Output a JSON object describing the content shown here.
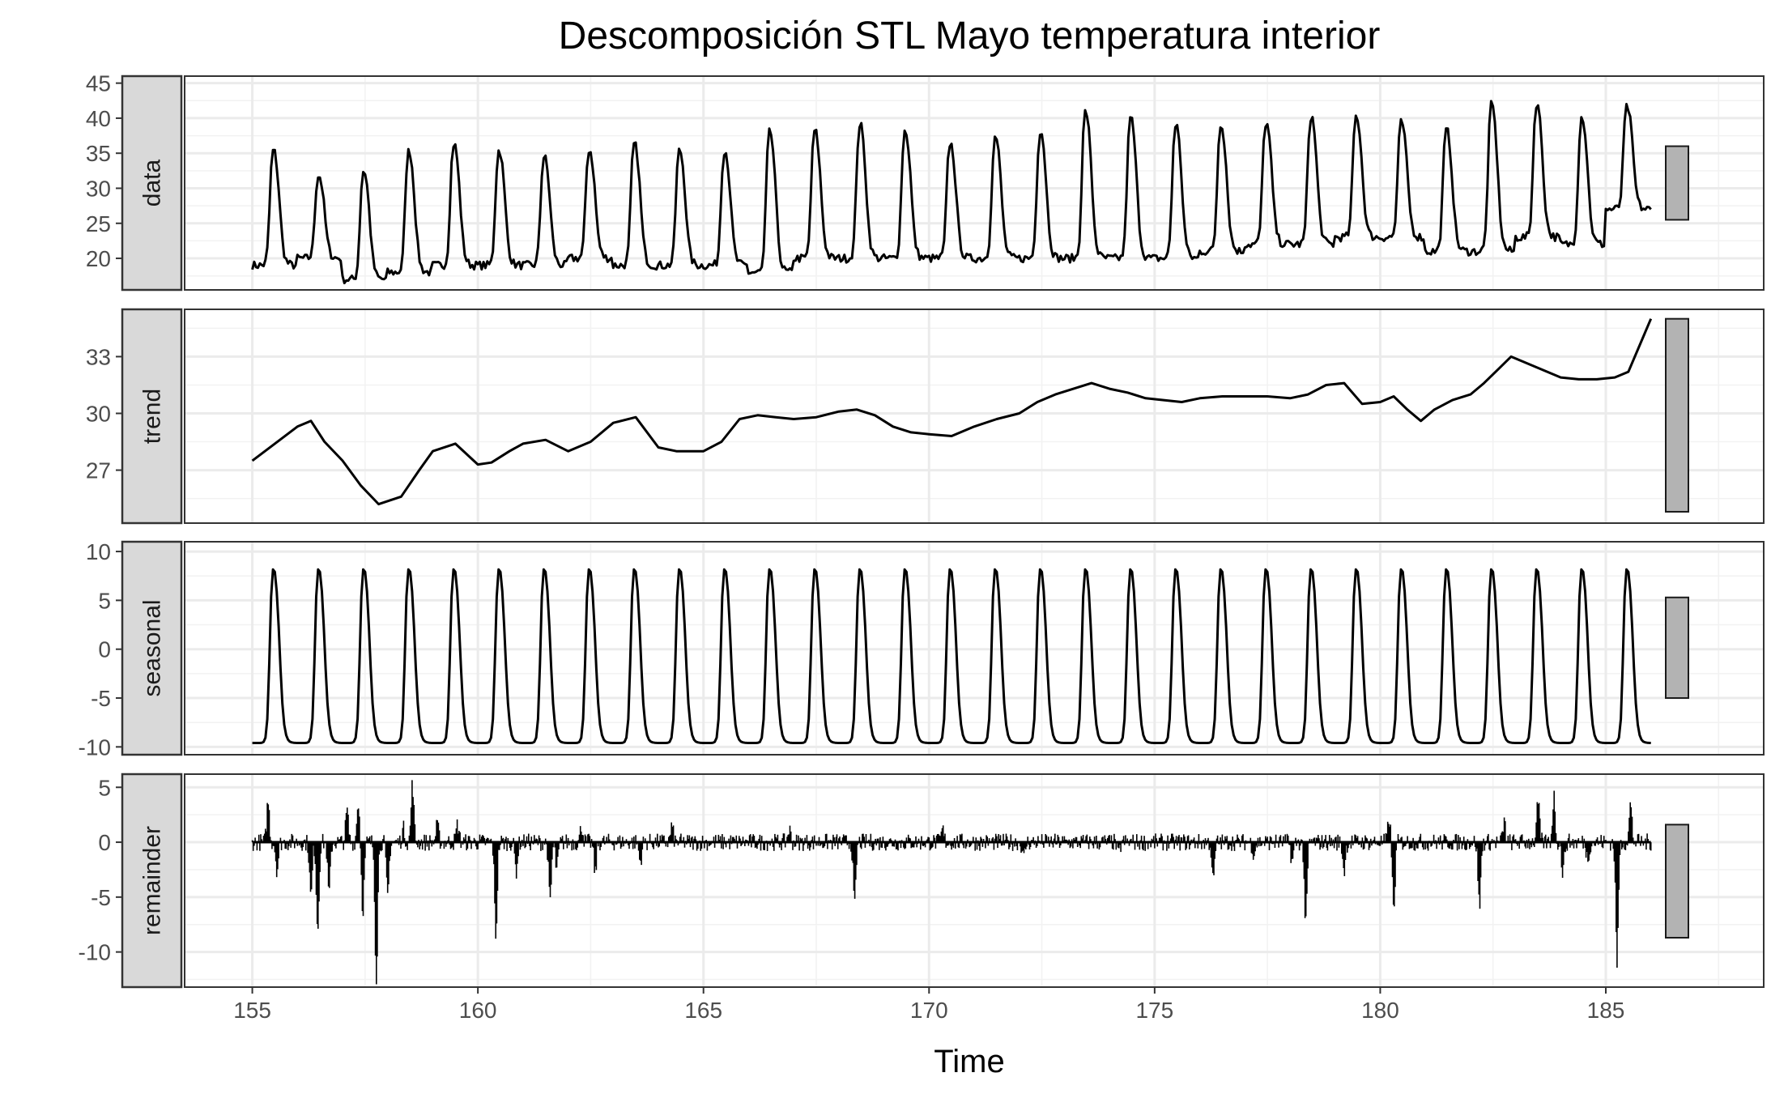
{
  "chart_data": {
    "type": "line",
    "title": "Descomposición STL Mayo temperatura interior",
    "xlabel": "Time",
    "xlim": [
      153.5,
      188.5
    ],
    "x_ticks": [
      "155",
      "160",
      "165",
      "170",
      "175",
      "180",
      "185"
    ],
    "x_tick_values": [
      155,
      160,
      165,
      170,
      175,
      180,
      185
    ],
    "x_start": 155,
    "x_end": 186,
    "samples_per_day": 24,
    "grid": true,
    "colors": {
      "line": "#000000",
      "panel_border": "#333333",
      "grid_major": "#ebebeb",
      "strip_fill": "#d9d9d9",
      "range_bar": "#b3b3b3"
    },
    "panels": [
      {
        "name": "data",
        "label": "data",
        "ylim": [
          15.5,
          46
        ],
        "y_ticks": [
          "20",
          "25",
          "30",
          "35",
          "40",
          "45"
        ],
        "y_tick_values": [
          20,
          25,
          30,
          35,
          40,
          45
        ],
        "range_bar": [
          25.5,
          36
        ],
        "daily_peaks": [
          37,
          33,
          34,
          37,
          38,
          37,
          36,
          37,
          38,
          37,
          37,
          40,
          40,
          41,
          40,
          38,
          39,
          40,
          43,
          42,
          41,
          41,
          41,
          42,
          42,
          41,
          40,
          44,
          44,
          42,
          43
        ],
        "daily_lows": [
          19,
          20,
          17,
          18,
          19,
          19,
          19,
          20,
          19,
          19,
          19,
          18,
          20,
          20,
          20,
          20,
          20,
          20,
          20,
          20,
          20,
          21,
          22,
          22,
          23,
          23,
          21,
          21,
          23,
          22,
          27
        ]
      },
      {
        "name": "trend",
        "label": "trend",
        "ylim": [
          24.2,
          35.5
        ],
        "y_ticks": [
          "27",
          "30",
          "33"
        ],
        "y_tick_values": [
          27,
          30,
          33
        ],
        "range_bar": [
          24.8,
          35.0
        ],
        "x": [
          155,
          155.5,
          156,
          156.3,
          156.6,
          157,
          157.4,
          157.8,
          158.3,
          158.7,
          159,
          159.5,
          160,
          160.3,
          160.7,
          161,
          161.5,
          162,
          162.5,
          163,
          163.5,
          164,
          164.4,
          165,
          165.4,
          165.8,
          166.2,
          166.6,
          167,
          167.5,
          168,
          168.4,
          168.8,
          169.2,
          169.6,
          170,
          170.5,
          171,
          171.5,
          172,
          172.4,
          172.8,
          173.2,
          173.6,
          174,
          174.4,
          174.8,
          175.2,
          175.6,
          176,
          176.5,
          177,
          177.5,
          178,
          178.4,
          178.8,
          179.2,
          179.6,
          180,
          180.3,
          180.6,
          180.9,
          181.2,
          181.6,
          182,
          182.3,
          182.6,
          182.9,
          183.2,
          183.6,
          184,
          184.4,
          184.8,
          185.2,
          185.5,
          186
        ],
        "y": [
          27.5,
          28.4,
          29.3,
          29.6,
          28.5,
          27.5,
          26.2,
          25.2,
          25.6,
          27.0,
          28.0,
          28.4,
          27.3,
          27.4,
          28.0,
          28.4,
          28.6,
          28.0,
          28.5,
          29.5,
          29.8,
          28.2,
          28.0,
          28.0,
          28.5,
          29.7,
          29.9,
          29.8,
          29.7,
          29.8,
          30.1,
          30.2,
          29.9,
          29.3,
          29.0,
          28.9,
          28.8,
          29.3,
          29.7,
          30.0,
          30.6,
          31.0,
          31.3,
          31.6,
          31.3,
          31.1,
          30.8,
          30.7,
          30.6,
          30.8,
          30.9,
          30.9,
          30.9,
          30.8,
          31.0,
          31.5,
          31.6,
          30.5,
          30.6,
          30.9,
          30.2,
          29.6,
          30.2,
          30.7,
          31.0,
          31.6,
          32.3,
          33.0,
          32.7,
          32.3,
          31.9,
          31.8,
          31.8,
          31.9,
          32.2,
          35.0
        ]
      },
      {
        "name": "seasonal",
        "label": "seasonal",
        "ylim": [
          -10.8,
          11.0
        ],
        "y_ticks": [
          "-10",
          "-5",
          "0",
          "5",
          "10"
        ],
        "y_tick_values": [
          -10,
          -5,
          0,
          5,
          10
        ],
        "range_bar": [
          -5,
          5.3
        ],
        "amplitude_max": 10,
        "amplitude_min": -9.6
      },
      {
        "name": "remainder",
        "label": "remainder",
        "ylim": [
          -13.2,
          6.2
        ],
        "y_ticks": [
          "-10",
          "-5",
          "0",
          "5"
        ],
        "y_tick_values": [
          -10,
          -5,
          0,
          5
        ],
        "range_bar": [
          -8.7,
          1.6
        ],
        "spikes": [
          {
            "x": 155.35,
            "y": 3.7
          },
          {
            "x": 155.55,
            "y": -2.5
          },
          {
            "x": 156.3,
            "y": -5.0
          },
          {
            "x": 156.45,
            "y": -7.9
          },
          {
            "x": 156.7,
            "y": -4.7
          },
          {
            "x": 157.1,
            "y": 2.8
          },
          {
            "x": 157.35,
            "y": 3.7
          },
          {
            "x": 157.45,
            "y": -6.2
          },
          {
            "x": 157.75,
            "y": -12.3
          },
          {
            "x": 158.0,
            "y": -5.0
          },
          {
            "x": 158.35,
            "y": 1.2
          },
          {
            "x": 158.55,
            "y": 5.3
          },
          {
            "x": 159.1,
            "y": 1.5
          },
          {
            "x": 159.55,
            "y": 1.6
          },
          {
            "x": 160.4,
            "y": -8.4
          },
          {
            "x": 160.85,
            "y": -2.6
          },
          {
            "x": 161.6,
            "y": -5.5
          },
          {
            "x": 161.75,
            "y": -2.6
          },
          {
            "x": 162.3,
            "y": 1.5
          },
          {
            "x": 162.6,
            "y": -2.8
          },
          {
            "x": 163.6,
            "y": -1.8
          },
          {
            "x": 164.3,
            "y": 1.4
          },
          {
            "x": 166.9,
            "y": 1.2
          },
          {
            "x": 168.35,
            "y": -5.8
          },
          {
            "x": 170.3,
            "y": 1.1
          },
          {
            "x": 172.1,
            "y": -1.5
          },
          {
            "x": 174.2,
            "y": -1.2
          },
          {
            "x": 176.3,
            "y": -3.6
          },
          {
            "x": 177.2,
            "y": -1.0
          },
          {
            "x": 178.05,
            "y": -1.8
          },
          {
            "x": 178.35,
            "y": -7.6
          },
          {
            "x": 179.2,
            "y": -2.6
          },
          {
            "x": 180.2,
            "y": 2.2
          },
          {
            "x": 180.3,
            "y": -6.3
          },
          {
            "x": 182.2,
            "y": -5.8
          },
          {
            "x": 182.75,
            "y": 1.8
          },
          {
            "x": 183.5,
            "y": 3.7
          },
          {
            "x": 183.85,
            "y": 4.2
          },
          {
            "x": 184.05,
            "y": -2.8
          },
          {
            "x": 184.6,
            "y": -1.5
          },
          {
            "x": 185.25,
            "y": -10.9
          },
          {
            "x": 185.55,
            "y": 3.4
          }
        ]
      }
    ]
  }
}
